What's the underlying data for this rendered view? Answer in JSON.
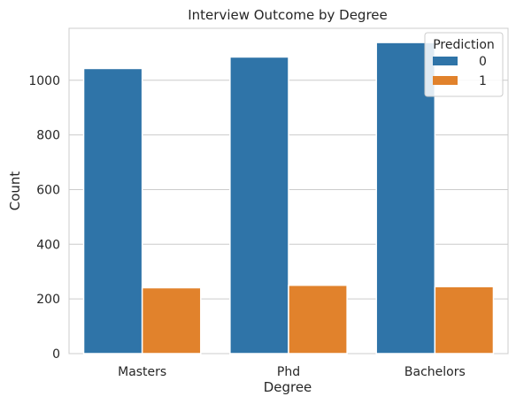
{
  "chart_data": {
    "type": "bar",
    "title": "Interview Outcome by Degree",
    "xlabel": "Degree",
    "ylabel": "Count",
    "categories": [
      "Masters",
      "Phd",
      "Bachelors"
    ],
    "series": [
      {
        "name": "0",
        "values": [
          1043,
          1085,
          1138
        ],
        "color": "#2f74a8"
      },
      {
        "name": "1",
        "values": [
          241,
          250,
          245
        ],
        "color": "#e1822c"
      }
    ],
    "ylim": [
      0,
      1190
    ],
    "yticks": [
      0,
      200,
      400,
      600,
      800,
      1000
    ],
    "ytick_labels": [
      "0",
      "200",
      "400",
      "600",
      "800",
      "1000"
    ],
    "grid": "horizontal",
    "legend": {
      "title": "Prediction",
      "placement": "top-right"
    }
  }
}
